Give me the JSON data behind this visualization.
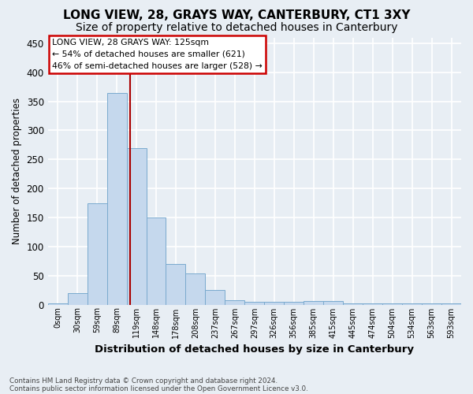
{
  "title": "LONG VIEW, 28, GRAYS WAY, CANTERBURY, CT1 3XY",
  "subtitle": "Size of property relative to detached houses in Canterbury",
  "xlabel": "Distribution of detached houses by size in Canterbury",
  "ylabel": "Number of detached properties",
  "footnote1": "Contains HM Land Registry data © Crown copyright and database right 2024.",
  "footnote2": "Contains public sector information licensed under the Open Government Licence v3.0.",
  "bar_labels": [
    "0sqm",
    "30sqm",
    "59sqm",
    "89sqm",
    "119sqm",
    "148sqm",
    "178sqm",
    "208sqm",
    "237sqm",
    "267sqm",
    "297sqm",
    "326sqm",
    "356sqm",
    "385sqm",
    "415sqm",
    "445sqm",
    "474sqm",
    "504sqm",
    "534sqm",
    "563sqm",
    "593sqm"
  ],
  "bar_values": [
    2,
    20,
    175,
    365,
    270,
    150,
    70,
    53,
    25,
    8,
    5,
    5,
    5,
    6,
    6,
    2,
    2,
    2,
    2,
    2,
    2
  ],
  "bar_color": "#c5d8ed",
  "bar_edge_color": "#7aaace",
  "ylim": [
    0,
    460
  ],
  "yticks": [
    0,
    50,
    100,
    150,
    200,
    250,
    300,
    350,
    400,
    450
  ],
  "property_line_x": 4.17,
  "annotation_text1": "LONG VIEW, 28 GRAYS WAY: 125sqm",
  "annotation_text2": "← 54% of detached houses are smaller (621)",
  "annotation_text3": "46% of semi-detached houses are larger (528) →",
  "annotation_box_color": "#ffffff",
  "annotation_border_color": "#cc0000",
  "vline_color": "#aa0000",
  "background_color": "#e8eef4",
  "grid_color": "#ffffff",
  "title_fontsize": 11,
  "subtitle_fontsize": 10
}
